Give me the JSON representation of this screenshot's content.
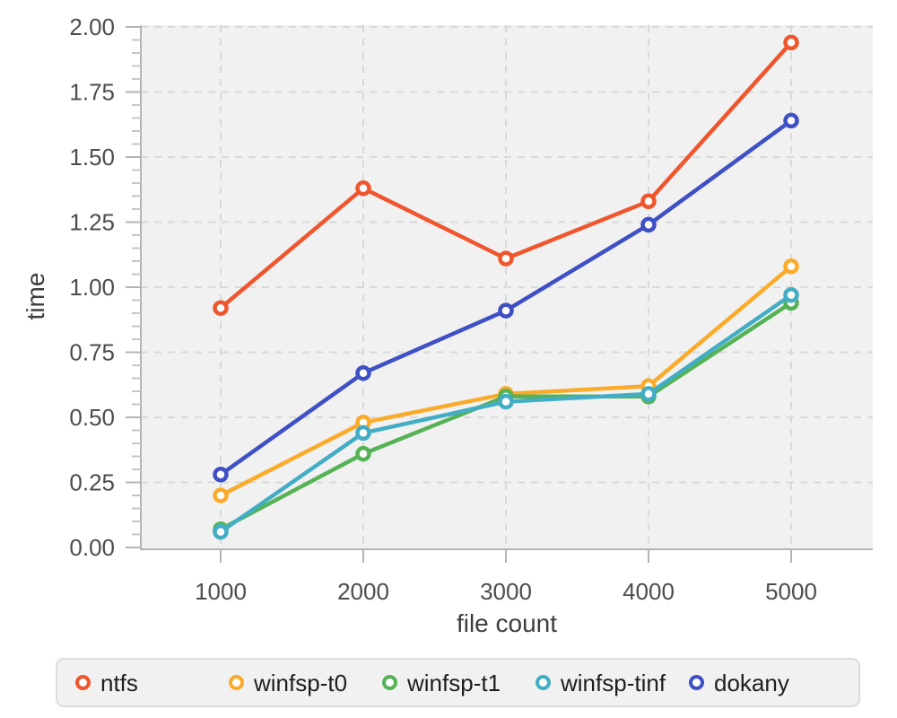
{
  "styles": {
    "page_bg": "#ffffff",
    "plot_bg": "#f1f1f1",
    "grid_color": "#d9d9d9",
    "axis_line_color": "#b4b4b4",
    "major_tick_color": "#b4b4b4",
    "minor_tick_color": "#c6c6c6",
    "tick_label_color": "#4d4d4d",
    "axis_title_color": "#3d3d3d",
    "legend_bg": "#f1f1f1",
    "legend_border": "#dcdcdc",
    "legend_text_color": "#1e1e1e",
    "marker_fill": "#ffffff"
  },
  "chart_data": {
    "type": "line",
    "title": "",
    "xlabel": "file count",
    "ylabel": "time",
    "x": [
      1000,
      2000,
      3000,
      4000,
      5000
    ],
    "x_tick_labels": [
      "1000",
      "2000",
      "3000",
      "4000",
      "5000"
    ],
    "y_ticks": [
      0,
      0.25,
      0.5,
      0.75,
      1.0,
      1.25,
      1.5,
      1.75,
      2.0
    ],
    "y_tick_labels": [
      "0.00",
      "0.25",
      "0.50",
      "0.75",
      "1.00",
      "1.25",
      "1.50",
      "1.75",
      "2.00"
    ],
    "ylim": [
      0,
      2.0
    ],
    "y_minor_step": 0.05,
    "grid": "dashed",
    "legend_position": "bottom",
    "series": [
      {
        "name": "ntfs",
        "color": "#F0562D",
        "values": [
          0.92,
          1.38,
          1.11,
          1.33,
          1.94
        ]
      },
      {
        "name": "winfsp-t0",
        "color": "#FBAB2A",
        "values": [
          0.2,
          0.48,
          0.59,
          0.62,
          1.08
        ]
      },
      {
        "name": "winfsp-t1",
        "color": "#55B255",
        "values": [
          0.07,
          0.36,
          0.58,
          0.58,
          0.94
        ]
      },
      {
        "name": "winfsp-tinf",
        "color": "#42ADC4",
        "values": [
          0.06,
          0.44,
          0.56,
          0.59,
          0.97
        ]
      },
      {
        "name": "dokany",
        "color": "#3E50C4",
        "values": [
          0.28,
          0.67,
          0.91,
          1.24,
          1.64
        ]
      }
    ]
  }
}
